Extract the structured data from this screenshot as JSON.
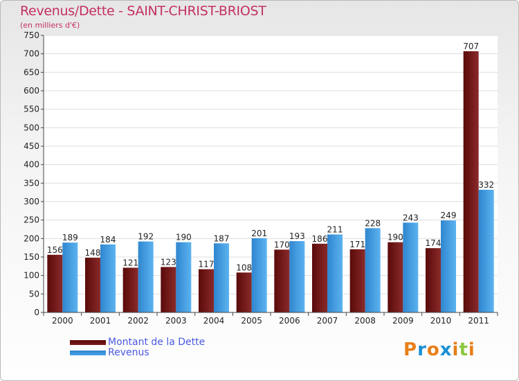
{
  "chart_data": {
    "type": "bar",
    "title": "Revenus/Dette - SAINT-CHRIST-BRIOST",
    "subtitle": "(en milliers d'€)",
    "categories": [
      "2000",
      "2001",
      "2002",
      "2003",
      "2004",
      "2005",
      "2006",
      "2007",
      "2008",
      "2009",
      "2010",
      "2011"
    ],
    "series": [
      {
        "name": "Montant de la Dette",
        "color": "#7a1a1a",
        "values": [
          156,
          148,
          121,
          123,
          117,
          108,
          170,
          186,
          171,
          190,
          174,
          707
        ]
      },
      {
        "name": "Revenus",
        "color": "#4aa3e8",
        "values": [
          189,
          184,
          192,
          190,
          187,
          201,
          193,
          211,
          228,
          243,
          249,
          332
        ]
      }
    ],
    "ylim": [
      0,
      750
    ],
    "yticks": [
      0,
      50,
      100,
      150,
      200,
      250,
      300,
      350,
      400,
      450,
      500,
      550,
      600,
      650,
      700,
      750
    ],
    "grid": true,
    "legend": "bottom-left"
  },
  "logo": {
    "letters": [
      "P",
      "r",
      "o",
      "x",
      "i",
      "t",
      "i"
    ],
    "colors": [
      "#e87f1a",
      "#1a8fd6",
      "#e87f1a",
      "#1a8fd6",
      "#e87f1a",
      "#8dc63f",
      "#e87f1a"
    ]
  }
}
